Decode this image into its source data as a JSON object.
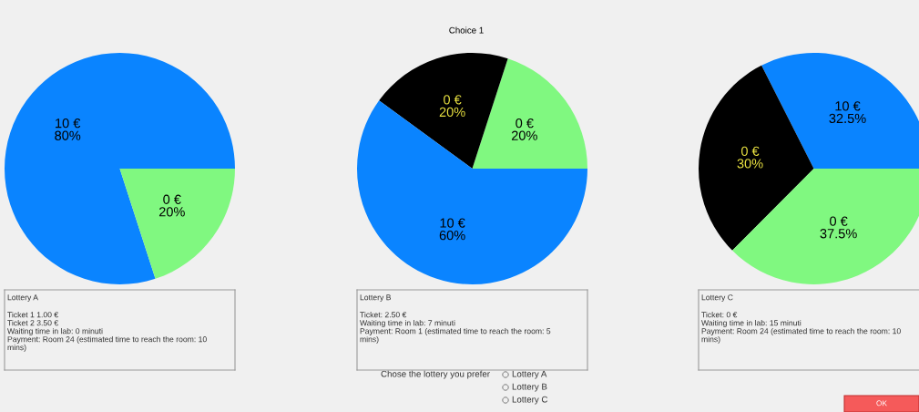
{
  "chart_data": [
    {
      "type": "other",
      "title": "Choice 1",
      "annotations": [
        "Chose the lottery you prefer",
        "Lottery A",
        "Lottery B",
        "Lottery C",
        "OK"
      ]
    },
    {
      "type": "pie",
      "categories": [
        "10 €",
        "0 €"
      ],
      "values": [
        80,
        20
      ],
      "value_labels": [
        "80%",
        "20%"
      ],
      "colors": [
        "#0a84ff",
        "#80f880"
      ],
      "annotations": [
        "Lottery A",
        "Ticket 1 1.00 €\nTicket 2 3.50 €\nWaiting time in lab: 0 minuti\nPayment: Room 24 (estimated time to reach the room: 10\nmins)"
      ]
    },
    {
      "type": "pie",
      "categories": [
        "0 €",
        "0 €",
        "10 €"
      ],
      "values": [
        20,
        20,
        60
      ],
      "value_labels": [
        "20%",
        "20%",
        "60%"
      ],
      "colors": [
        "#80f880",
        "#000000",
        "#0a84ff"
      ],
      "annotations": [
        "Lottery B",
        "Ticket: 2.50 €\nWaiting time in lab: 7 minuti\nPayment: Room 1 (estimated time to reach the room: 5\nmins)"
      ]
    },
    {
      "type": "pie",
      "categories": [
        "10 €",
        "0 €",
        "0 €"
      ],
      "values": [
        32.5,
        30,
        37.5
      ],
      "value_labels": [
        "32.5%",
        "30%",
        "37.5%"
      ],
      "colors": [
        "#0a84ff",
        "#000000",
        "#80f880"
      ],
      "annotations": [
        "Lottery C",
        "Ticket: 0 €\nWaiting time in lab: 15 minuti\nPayment: Room 24 (estimated time to reach the room: 10\nmins)"
      ]
    }
  ]
}
